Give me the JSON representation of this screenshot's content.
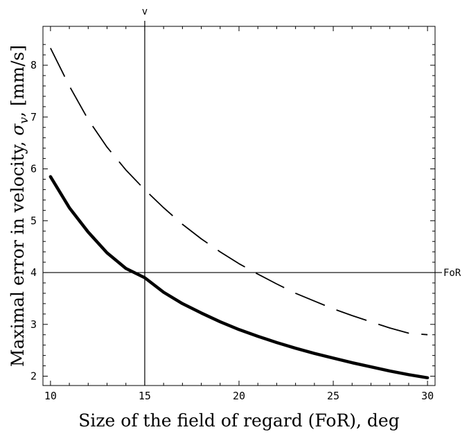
{
  "chart_data": {
    "type": "line",
    "xlabel": "Size of the field of regard (FoR),  deg",
    "ylabel": "Maximal  error in velocity,  σ_v,  [mm/s]",
    "ylabel_parts": {
      "main": "Maximal  error in velocity,  ",
      "sigma": "σ",
      "sub": "v",
      "unit": ",  [mm/s]"
    },
    "xlim": [
      9.6,
      30.4
    ],
    "ylim": [
      1.82,
      8.75
    ],
    "x_ticks": [
      10,
      15,
      20,
      25,
      30
    ],
    "y_ticks": [
      2,
      3,
      4,
      5,
      6,
      7,
      8
    ],
    "grid": false,
    "reference_lines": {
      "vertical": {
        "x": 15,
        "label": "v"
      },
      "horizontal": {
        "y": 4,
        "label": "FoR"
      }
    },
    "series": [
      {
        "style": "dashed",
        "points": [
          [
            10,
            8.33
          ],
          [
            11,
            7.6
          ],
          [
            12,
            6.95
          ],
          [
            13,
            6.42
          ],
          [
            14,
            5.98
          ],
          [
            15,
            5.6
          ],
          [
            16,
            5.25
          ],
          [
            17,
            4.93
          ],
          [
            18,
            4.65
          ],
          [
            19,
            4.4
          ],
          [
            20,
            4.17
          ],
          [
            21,
            3.97
          ],
          [
            22,
            3.78
          ],
          [
            23,
            3.6
          ],
          [
            24,
            3.45
          ],
          [
            25,
            3.3
          ],
          [
            26,
            3.17
          ],
          [
            27,
            3.05
          ],
          [
            28,
            2.93
          ],
          [
            29,
            2.83
          ],
          [
            30,
            2.8
          ]
        ]
      },
      {
        "style": "solid-thick",
        "points": [
          [
            10,
            5.85
          ],
          [
            11,
            5.25
          ],
          [
            12,
            4.78
          ],
          [
            13,
            4.38
          ],
          [
            14,
            4.08
          ],
          [
            15,
            3.9
          ],
          [
            16,
            3.62
          ],
          [
            17,
            3.4
          ],
          [
            18,
            3.22
          ],
          [
            19,
            3.05
          ],
          [
            20,
            2.9
          ],
          [
            21,
            2.77
          ],
          [
            22,
            2.65
          ],
          [
            23,
            2.54
          ],
          [
            24,
            2.44
          ],
          [
            25,
            2.35
          ],
          [
            26,
            2.26
          ],
          [
            27,
            2.18
          ],
          [
            28,
            2.1
          ],
          [
            29,
            2.03
          ],
          [
            30,
            1.97
          ]
        ]
      }
    ]
  }
}
